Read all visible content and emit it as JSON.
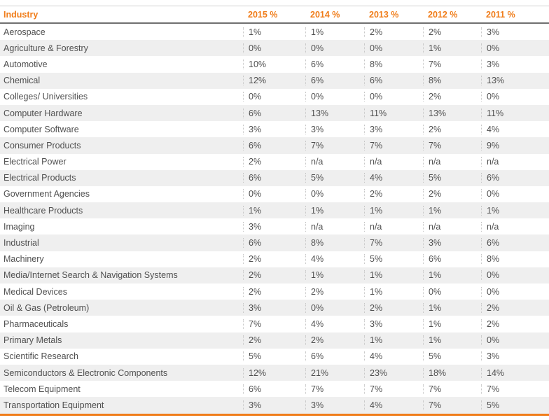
{
  "table": {
    "headers": {
      "industry": "Industry",
      "y2015": "2015 %",
      "y2014": "2014 %",
      "y2013": "2013 %",
      "y2012": "2012 %",
      "y2011": "2011 %"
    },
    "rows": [
      {
        "industry": "Aerospace",
        "y2015": "1%",
        "y2014": "1%",
        "y2013": "2%",
        "y2012": "2%",
        "y2011": "3%"
      },
      {
        "industry": "Agriculture & Forestry",
        "y2015": "0%",
        "y2014": "0%",
        "y2013": "0%",
        "y2012": "1%",
        "y2011": "0%"
      },
      {
        "industry": "Automotive",
        "y2015": "10%",
        "y2014": "6%",
        "y2013": "8%",
        "y2012": "7%",
        "y2011": "3%"
      },
      {
        "industry": "Chemical",
        "y2015": "12%",
        "y2014": "6%",
        "y2013": "6%",
        "y2012": "8%",
        "y2011": "13%"
      },
      {
        "industry": "Colleges/ Universities",
        "y2015": "0%",
        "y2014": "0%",
        "y2013": "0%",
        "y2012": "2%",
        "y2011": "0%"
      },
      {
        "industry": "Computer Hardware",
        "y2015": "6%",
        "y2014": "13%",
        "y2013": "11%",
        "y2012": "13%",
        "y2011": "11%"
      },
      {
        "industry": "Computer Software",
        "y2015": "3%",
        "y2014": "3%",
        "y2013": "3%",
        "y2012": "2%",
        "y2011": "4%"
      },
      {
        "industry": "Consumer Products",
        "y2015": "6%",
        "y2014": "7%",
        "y2013": "7%",
        "y2012": "7%",
        "y2011": "9%"
      },
      {
        "industry": "Electrical Power",
        "y2015": "2%",
        "y2014": "n/a",
        "y2013": "n/a",
        "y2012": "n/a",
        "y2011": "n/a"
      },
      {
        "industry": "Electrical Products",
        "y2015": "6%",
        "y2014": "5%",
        "y2013": "4%",
        "y2012": "5%",
        "y2011": "6%"
      },
      {
        "industry": "Government Agencies",
        "y2015": "0%",
        "y2014": "0%",
        "y2013": "2%",
        "y2012": "2%",
        "y2011": "0%"
      },
      {
        "industry": "Healthcare Products",
        "y2015": "1%",
        "y2014": "1%",
        "y2013": "1%",
        "y2012": "1%",
        "y2011": "1%"
      },
      {
        "industry": "Imaging",
        "y2015": "3%",
        "y2014": "n/a",
        "y2013": "n/a",
        "y2012": "n/a",
        "y2011": "n/a"
      },
      {
        "industry": "Industrial",
        "y2015": "6%",
        "y2014": "8%",
        "y2013": "7%",
        "y2012": "3%",
        "y2011": "6%"
      },
      {
        "industry": "Machinery",
        "y2015": "2%",
        "y2014": "4%",
        "y2013": "5%",
        "y2012": "6%",
        "y2011": "8%"
      },
      {
        "industry": "Media/Internet Search & Navigation Systems",
        "y2015": "2%",
        "y2014": "1%",
        "y2013": "1%",
        "y2012": "1%",
        "y2011": "0%"
      },
      {
        "industry": "Medical Devices",
        "y2015": "2%",
        "y2014": "2%",
        "y2013": "1%",
        "y2012": "0%",
        "y2011": "0%"
      },
      {
        "industry": "Oil & Gas (Petroleum)",
        "y2015": "3%",
        "y2014": "0%",
        "y2013": "2%",
        "y2012": "1%",
        "y2011": "2%"
      },
      {
        "industry": "Pharmaceuticals",
        "y2015": "7%",
        "y2014": "4%",
        "y2013": "3%",
        "y2012": "1%",
        "y2011": "2%"
      },
      {
        "industry": "Primary Metals",
        "y2015": "2%",
        "y2014": "2%",
        "y2013": "1%",
        "y2012": "1%",
        "y2011": "0%"
      },
      {
        "industry": "Scientific Research",
        "y2015": "5%",
        "y2014": "6%",
        "y2013": "4%",
        "y2012": "5%",
        "y2011": "3%"
      },
      {
        "industry": "Semiconductors & Electronic Components",
        "y2015": "12%",
        "y2014": "21%",
        "y2013": "23%",
        "y2012": "18%",
        "y2011": "14%"
      },
      {
        "industry": "Telecom Equipment",
        "y2015": "6%",
        "y2014": "7%",
        "y2013": "7%",
        "y2012": "7%",
        "y2011": "7%"
      },
      {
        "industry": "Transportation Equipment",
        "y2015": "3%",
        "y2014": "3%",
        "y2013": "4%",
        "y2012": "7%",
        "y2011": "5%"
      }
    ]
  },
  "colors": {
    "header_text": "#f07d1a",
    "body_text": "#505050",
    "stripe": "#efefef",
    "bottom_rule": "#f07d1a"
  }
}
